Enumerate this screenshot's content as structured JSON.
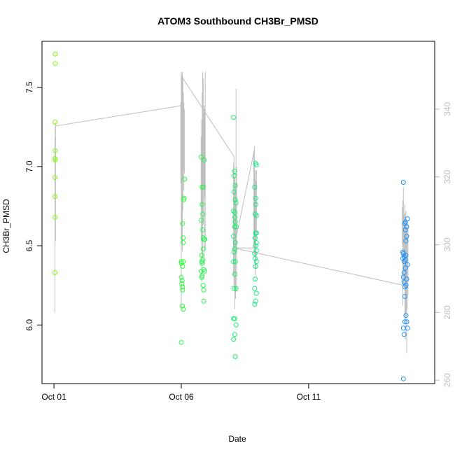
{
  "chart_data": {
    "type": "scatter",
    "title": "ATOM3 Southbound CH3Br_PMSD",
    "xlabel": "Date",
    "ylabel": "CH3Br_PMSD",
    "x_ticks": [
      {
        "value": 0,
        "label": "Oct 01"
      },
      {
        "value": 5,
        "label": "Oct 06"
      },
      {
        "value": 10,
        "label": "Oct 11"
      }
    ],
    "xlim": [
      -0.47,
      14.95
    ],
    "ylim": [
      5.63,
      7.79
    ],
    "y_ticks": [
      6.0,
      6.5,
      7.0,
      7.5
    ],
    "y2lim": [
      259,
      360
    ],
    "y2_ticks": [
      260,
      280,
      300,
      320,
      340
    ],
    "colors": {
      "axis": "#000000",
      "secondary": "#bebebe",
      "gradient": [
        "#7cfc00",
        "#33ff33",
        "#00e5a0",
        "#1e90ff"
      ]
    },
    "series": [
      {
        "role": "points",
        "points": [
          [
            0.05,
            7.71
          ],
          [
            0.05,
            7.65
          ],
          [
            0.04,
            7.28
          ],
          [
            0.05,
            7.1
          ],
          [
            0.04,
            7.05
          ],
          [
            0.05,
            7.04
          ],
          [
            0.04,
            6.93
          ],
          [
            0.04,
            6.81
          ],
          [
            0.04,
            6.68
          ],
          [
            0.04,
            6.33
          ],
          [
            5.0,
            6.39
          ],
          [
            5.0,
            6.4
          ],
          [
            5.0,
            6.3
          ],
          [
            5.02,
            6.26
          ],
          [
            5.05,
            6.37
          ],
          [
            5.05,
            6.22
          ],
          [
            5.07,
            6.52
          ],
          [
            5.05,
            6.64
          ],
          [
            5.07,
            6.55
          ],
          [
            5.09,
            6.79
          ],
          [
            5.11,
            6.8
          ],
          [
            5.13,
            6.92
          ],
          [
            5.04,
            6.12
          ],
          [
            5.08,
            6.1
          ],
          [
            5.05,
            6.24
          ],
          [
            5.03,
            6.28
          ],
          [
            5.0,
            5.89
          ],
          [
            5.08,
            6.4
          ],
          [
            5.78,
            7.06
          ],
          [
            5.82,
            6.87
          ],
          [
            5.82,
            6.76
          ],
          [
            5.86,
            6.87
          ],
          [
            5.78,
            6.66
          ],
          [
            5.84,
            6.6
          ],
          [
            5.86,
            6.55
          ],
          [
            5.9,
            6.54
          ],
          [
            5.92,
            6.54
          ],
          [
            5.8,
            6.44
          ],
          [
            5.84,
            6.41
          ],
          [
            5.82,
            6.39
          ],
          [
            5.88,
            6.35
          ],
          [
            5.78,
            6.34
          ],
          [
            5.8,
            6.3
          ],
          [
            5.92,
            6.34
          ],
          [
            5.82,
            6.31
          ],
          [
            5.86,
            6.25
          ],
          [
            5.88,
            6.22
          ],
          [
            5.88,
            6.15
          ],
          [
            5.9,
            7.04
          ],
          [
            5.84,
            6.7
          ],
          [
            5.86,
            6.48
          ],
          [
            5.8,
            6.4
          ],
          [
            7.05,
            7.31
          ],
          [
            7.1,
            6.97
          ],
          [
            7.07,
            6.94
          ],
          [
            7.12,
            6.88
          ],
          [
            7.07,
            6.84
          ],
          [
            7.12,
            6.79
          ],
          [
            7.15,
            6.77
          ],
          [
            7.05,
            6.72
          ],
          [
            7.1,
            6.68
          ],
          [
            7.12,
            6.65
          ],
          [
            7.1,
            6.62
          ],
          [
            7.05,
            6.56
          ],
          [
            7.12,
            6.52
          ],
          [
            7.1,
            6.48
          ],
          [
            7.07,
            6.46
          ],
          [
            7.05,
            6.4
          ],
          [
            7.12,
            6.4
          ],
          [
            7.1,
            6.32
          ],
          [
            7.07,
            6.23
          ],
          [
            7.15,
            6.23
          ],
          [
            7.05,
            6.04
          ],
          [
            7.1,
            6.04
          ],
          [
            7.15,
            6.0
          ],
          [
            7.1,
            5.94
          ],
          [
            7.05,
            5.91
          ],
          [
            7.12,
            5.8
          ],
          [
            7.15,
            6.62
          ],
          [
            7.1,
            6.71
          ],
          [
            7.92,
            7.02
          ],
          [
            7.95,
            7.01
          ],
          [
            7.88,
            6.87
          ],
          [
            7.92,
            6.8
          ],
          [
            7.9,
            6.7
          ],
          [
            7.95,
            6.69
          ],
          [
            7.92,
            6.58
          ],
          [
            7.95,
            6.58
          ],
          [
            7.9,
            6.55
          ],
          [
            7.95,
            6.52
          ],
          [
            7.92,
            6.5
          ],
          [
            7.95,
            6.47
          ],
          [
            7.88,
            6.45
          ],
          [
            7.9,
            6.42
          ],
          [
            7.95,
            6.4
          ],
          [
            7.92,
            6.37
          ],
          [
            7.9,
            6.29
          ],
          [
            7.88,
            6.23
          ],
          [
            7.95,
            6.2
          ],
          [
            7.92,
            6.15
          ],
          [
            7.88,
            6.13
          ],
          [
            7.92,
            6.76
          ],
          [
            13.7,
            6.46
          ],
          [
            13.72,
            6.45
          ],
          [
            13.75,
            6.43
          ],
          [
            13.8,
            6.41
          ],
          [
            13.75,
            6.4
          ],
          [
            13.72,
            6.3
          ],
          [
            13.85,
            6.29
          ],
          [
            13.75,
            6.27
          ],
          [
            13.78,
            6.24
          ],
          [
            13.82,
            6.25
          ],
          [
            13.8,
            6.36
          ],
          [
            13.75,
            6.33
          ],
          [
            13.78,
            6.18
          ],
          [
            13.72,
            6.9
          ],
          [
            13.7,
            6.42
          ],
          [
            13.82,
            6.44
          ],
          [
            13.8,
            6.6
          ],
          [
            13.85,
            6.62
          ],
          [
            13.8,
            6.65
          ],
          [
            13.78,
            6.64
          ],
          [
            13.88,
            6.67
          ],
          [
            13.82,
            6.53
          ],
          [
            13.85,
            6.56
          ],
          [
            13.88,
            6.38
          ],
          [
            13.82,
            6.06
          ],
          [
            13.78,
            6.02
          ],
          [
            13.72,
            5.98
          ],
          [
            13.85,
            6.02
          ],
          [
            13.75,
            5.94
          ],
          [
            13.88,
            5.98
          ],
          [
            13.72,
            5.66
          ]
        ]
      },
      {
        "role": "secondary-line",
        "points": [
          [
            0.05,
            333
          ],
          [
            0.05,
            312
          ],
          [
            0.05,
            335
          ],
          [
            5.0,
            341
          ],
          [
            5.0,
            350
          ],
          [
            5.07,
            349
          ],
          [
            7.07,
            326
          ],
          [
            7.07,
            299
          ],
          [
            7.87,
            328
          ],
          [
            7.87,
            325
          ],
          [
            7.87,
            299
          ],
          [
            7.07,
            299
          ],
          [
            13.72,
            288
          ],
          [
            13.72,
            312
          ]
        ]
      },
      {
        "role": "secondary-spikes",
        "segments": [
          [
            0.04,
            280,
            0.04,
            332
          ],
          [
            0.06,
            301,
            0.06,
            336
          ],
          [
            4.98,
            318,
            4.98,
            342
          ],
          [
            5.0,
            281,
            5.0,
            351
          ],
          [
            5.02,
            300,
            5.02,
            350
          ],
          [
            5.04,
            298,
            5.04,
            351
          ],
          [
            5.06,
            310,
            5.06,
            349
          ],
          [
            5.08,
            322,
            5.08,
            345
          ],
          [
            5.1,
            316,
            5.1,
            342
          ],
          [
            5.12,
            321,
            5.12,
            340
          ],
          [
            5.78,
            301,
            5.78,
            332
          ],
          [
            5.8,
            289,
            5.8,
            337
          ],
          [
            5.82,
            310,
            5.82,
            345
          ],
          [
            5.84,
            296,
            5.84,
            351
          ],
          [
            5.86,
            306,
            5.86,
            349
          ],
          [
            5.88,
            317,
            5.88,
            339
          ],
          [
            5.9,
            294,
            5.9,
            341
          ],
          [
            5.92,
            314,
            5.92,
            340
          ],
          [
            5.94,
            299,
            5.94,
            351
          ],
          [
            7.05,
            291,
            7.05,
            324
          ],
          [
            7.07,
            287,
            7.07,
            322
          ],
          [
            7.1,
            281,
            7.1,
            320
          ],
          [
            7.13,
            284,
            7.13,
            318
          ],
          [
            7.15,
            298,
            7.15,
            346
          ],
          [
            7.17,
            286,
            7.17,
            323
          ],
          [
            7.85,
            300,
            7.85,
            327
          ],
          [
            7.87,
            297,
            7.87,
            329
          ],
          [
            7.9,
            291,
            7.9,
            322
          ],
          [
            7.93,
            293,
            7.93,
            319
          ],
          [
            7.95,
            302,
            7.95,
            322
          ],
          [
            13.68,
            300,
            13.68,
            311
          ],
          [
            13.7,
            282,
            13.7,
            313
          ],
          [
            13.72,
            291,
            13.72,
            317
          ],
          [
            13.75,
            288,
            13.75,
            309
          ],
          [
            13.78,
            278,
            13.78,
            312
          ],
          [
            13.8,
            272,
            13.8,
            308
          ],
          [
            13.82,
            279,
            13.82,
            310
          ],
          [
            13.85,
            268,
            13.85,
            307
          ],
          [
            13.87,
            281,
            13.87,
            304
          ],
          [
            13.9,
            285,
            13.9,
            306
          ]
        ]
      }
    ]
  }
}
